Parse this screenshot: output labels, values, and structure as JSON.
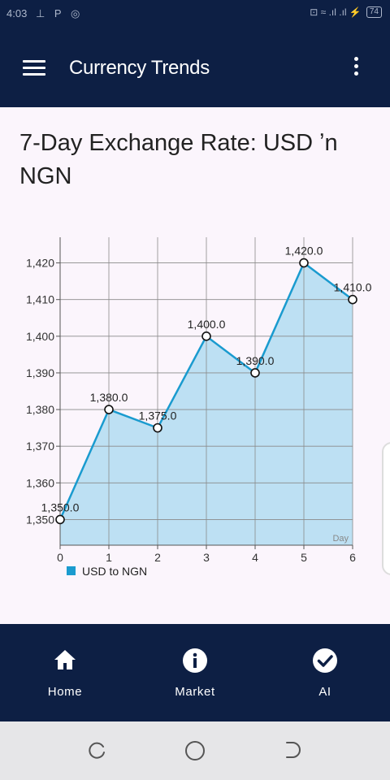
{
  "status_bar": {
    "time": "4:03",
    "left_icons": "⊥ P ◎",
    "right_icons": "⊡ ≈ .ıl .ıl ⚡",
    "battery": "74"
  },
  "app_bar": {
    "title": "Currency Trends"
  },
  "chart_title": "7-Day Exchange Rate: USD ʼn NGN",
  "chart_data": {
    "type": "area",
    "x": [
      0,
      1,
      2,
      3,
      4,
      5,
      6
    ],
    "xlabel": "Day",
    "ylabel": "",
    "ylim": [
      1343,
      1427
    ],
    "xlim": [
      0,
      6
    ],
    "y_ticks": [
      1350,
      1360,
      1370,
      1380,
      1390,
      1400,
      1410,
      1420
    ],
    "y_tick_labels": [
      "1,350",
      "1,360",
      "1,370",
      "1,380",
      "1,390",
      "1,400",
      "1,410",
      "1,420"
    ],
    "x_tick_labels": [
      "0",
      "1",
      "2",
      "3",
      "4",
      "5",
      "6"
    ],
    "grid": true,
    "legend_position": "bottom-left",
    "series": [
      {
        "name": "USD to NGN",
        "values": [
          1350.0,
          1380.0,
          1375.0,
          1400.0,
          1390.0,
          1420.0,
          1410.0
        ],
        "labels": [
          "1,350.0",
          "1,380.0",
          "1,375.0",
          "1,400.0",
          "1,390.0",
          "1,420.0",
          "1,410.0"
        ],
        "line_color": "#1a9bcf",
        "fill_color": "#bde0f3"
      }
    ]
  },
  "bottom_nav": {
    "items": [
      {
        "label": "Home",
        "icon": "home-icon"
      },
      {
        "label": "Market",
        "icon": "info-icon"
      },
      {
        "label": "AI",
        "icon": "check-circle-icon"
      }
    ]
  },
  "system_nav": {
    "icons": [
      "recents-icon",
      "home-circle-icon",
      "back-icon"
    ]
  }
}
